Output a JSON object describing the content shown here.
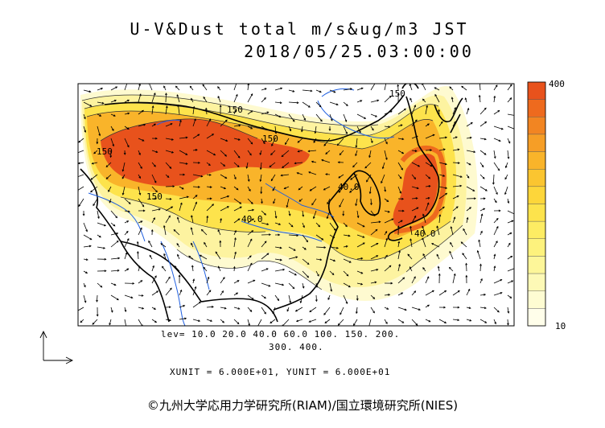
{
  "title": {
    "line1": "U-V&Dust total m/s&ug/m3 JST",
    "line2": "2018/05/25.03:00:00"
  },
  "colorbar": {
    "max_label": "400",
    "min_label": "10",
    "colors": [
      "#e8521c",
      "#ee6a1e",
      "#f28522",
      "#f69e26",
      "#f9b42a",
      "#fbc530",
      "#fdd63a",
      "#fde34c",
      "#fdec63",
      "#fdf27d",
      "#fdf699",
      "#fdf9b6",
      "#fefcd2",
      "#fffeea"
    ]
  },
  "map": {
    "contour_labels": [
      "150",
      "150",
      "150",
      "40.0",
      "40.0",
      "40.0",
      "150",
      "150"
    ],
    "colors": {
      "land_border": "#000000",
      "river": "#1f5fe0",
      "dust_high": "#e8521c",
      "dust_low": "#fdf3a0"
    }
  },
  "legend": {
    "levels_line1": "lev=  10.0  20.0  40.0  60.0  100.  150.  200.",
    "levels_line2": "300.  400.",
    "units": "XUNIT = 6.000E+01,  YUNIT = 6.000E+01"
  },
  "copyright": "©九州大学応用力学研究所(RIAM)/国立環境研究所(NIES)"
}
